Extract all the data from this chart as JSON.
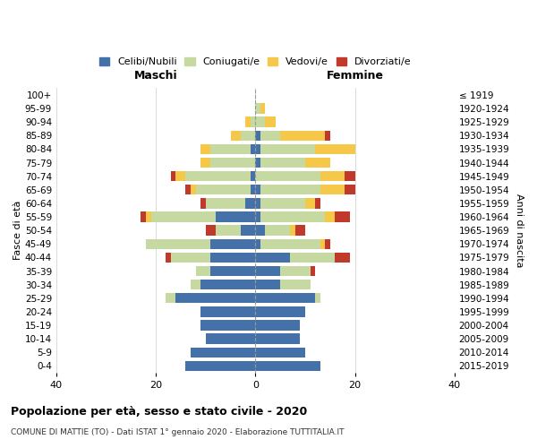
{
  "age_groups": [
    "0-4",
    "5-9",
    "10-14",
    "15-19",
    "20-24",
    "25-29",
    "30-34",
    "35-39",
    "40-44",
    "45-49",
    "50-54",
    "55-59",
    "60-64",
    "65-69",
    "70-74",
    "75-79",
    "80-84",
    "85-89",
    "90-94",
    "95-99",
    "100+"
  ],
  "birth_years": [
    "2015-2019",
    "2010-2014",
    "2005-2009",
    "2000-2004",
    "1995-1999",
    "1990-1994",
    "1985-1989",
    "1980-1984",
    "1975-1979",
    "1970-1974",
    "1965-1969",
    "1960-1964",
    "1955-1959",
    "1950-1954",
    "1945-1949",
    "1940-1944",
    "1935-1939",
    "1930-1934",
    "1925-1929",
    "1920-1924",
    "≤ 1919"
  ],
  "colors": {
    "celibi": "#4472a8",
    "coniugati": "#c5d9a0",
    "vedovi": "#f5c84a",
    "divorziati": "#c0392b"
  },
  "maschi": {
    "celibi": [
      14,
      13,
      10,
      11,
      11,
      16,
      11,
      9,
      9,
      9,
      3,
      8,
      2,
      1,
      1,
      0,
      1,
      0,
      0,
      0,
      0
    ],
    "coniugati": [
      0,
      0,
      0,
      0,
      0,
      2,
      2,
      3,
      8,
      13,
      5,
      13,
      8,
      11,
      13,
      9,
      8,
      3,
      1,
      0,
      0
    ],
    "vedovi": [
      0,
      0,
      0,
      0,
      0,
      0,
      0,
      0,
      0,
      0,
      0,
      1,
      0,
      1,
      2,
      2,
      2,
      2,
      1,
      0,
      0
    ],
    "divorziati": [
      0,
      0,
      0,
      0,
      0,
      0,
      0,
      0,
      1,
      0,
      2,
      1,
      1,
      1,
      1,
      0,
      0,
      0,
      0,
      0,
      0
    ]
  },
  "femmine": {
    "nubili": [
      13,
      10,
      9,
      9,
      10,
      12,
      5,
      5,
      7,
      1,
      2,
      1,
      1,
      1,
      0,
      1,
      1,
      1,
      0,
      0,
      0
    ],
    "coniugate": [
      0,
      0,
      0,
      0,
      0,
      1,
      6,
      6,
      9,
      12,
      5,
      13,
      9,
      12,
      13,
      9,
      11,
      4,
      2,
      1,
      0
    ],
    "vedove": [
      0,
      0,
      0,
      0,
      0,
      0,
      0,
      0,
      0,
      1,
      1,
      2,
      2,
      5,
      5,
      5,
      8,
      9,
      2,
      1,
      0
    ],
    "divorziate": [
      0,
      0,
      0,
      0,
      0,
      0,
      0,
      1,
      3,
      1,
      2,
      3,
      1,
      2,
      2,
      0,
      0,
      1,
      0,
      0,
      0
    ]
  },
  "xlim": 40,
  "title": "Popolazione per età, sesso e stato civile - 2020",
  "subtitle": "COMUNE DI MATTIE (TO) - Dati ISTAT 1° gennaio 2020 - Elaborazione TUTTITALIA.IT",
  "ylabel_left": "Fasce di età",
  "ylabel_right": "Anni di nascita",
  "xlabel_maschi": "Maschi",
  "xlabel_femmine": "Femmine",
  "legend_labels": [
    "Celibi/Nubili",
    "Coniugati/e",
    "Vedovi/e",
    "Divorziati/e"
  ],
  "bar_height": 0.75,
  "background_color": "#ffffff",
  "grid_color": "#cccccc"
}
